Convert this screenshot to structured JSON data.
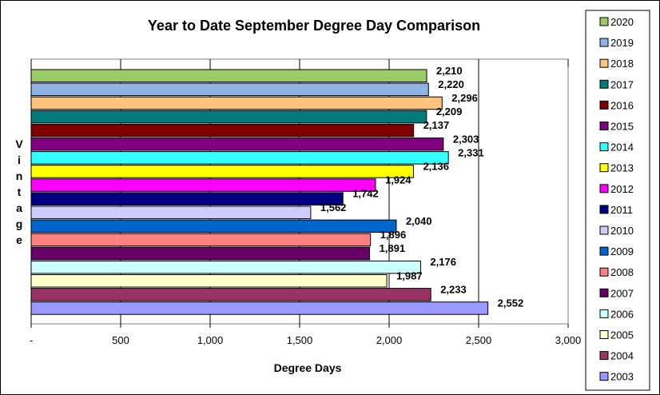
{
  "chart_data": {
    "type": "bar",
    "orientation": "horizontal",
    "title": "Year to Date September Degree Day Comparison",
    "xlabel": "Degree Days",
    "ylabel": "Vintage",
    "xlim": [
      0,
      3000
    ],
    "xticks": [
      0,
      500,
      1000,
      1500,
      2000,
      2500,
      3000
    ],
    "xtick_labels": [
      "-",
      "500",
      "1,000",
      "1,500",
      "2,000",
      "2,500",
      "3,000"
    ],
    "grid": "vertical major gridlines",
    "legend_position": "right",
    "categories": [
      "2020",
      "2019",
      "2018",
      "2017",
      "2016",
      "2015",
      "2014",
      "2013",
      "2012",
      "2011",
      "2010",
      "2009",
      "2008",
      "2007",
      "2006",
      "2005",
      "2004",
      "2003"
    ],
    "values": [
      2210,
      2220,
      2296,
      2209,
      2137,
      2303,
      2331,
      2136,
      1924,
      1742,
      1562,
      2040,
      1896,
      1891,
      2176,
      1987,
      2233,
      2552
    ],
    "value_labels": [
      "2,210",
      "2,220",
      "2,296",
      "2,209",
      "2,137",
      "2,303",
      "2,331",
      "2,136",
      "1,924",
      "1,742",
      "1,562",
      "2,040",
      "1,896",
      "1,891",
      "2,176",
      "1,987",
      "2,233",
      "2,552"
    ],
    "colors": [
      "#99cc66",
      "#8eb4e3",
      "#fcc47c",
      "#007a7a",
      "#800000",
      "#800080",
      "#33ffff",
      "#ffff00",
      "#ff00ff",
      "#000080",
      "#ccccff",
      "#0066cc",
      "#ff8080",
      "#660066",
      "#ccffff",
      "#ffffcc",
      "#993366",
      "#9999ff"
    ]
  }
}
